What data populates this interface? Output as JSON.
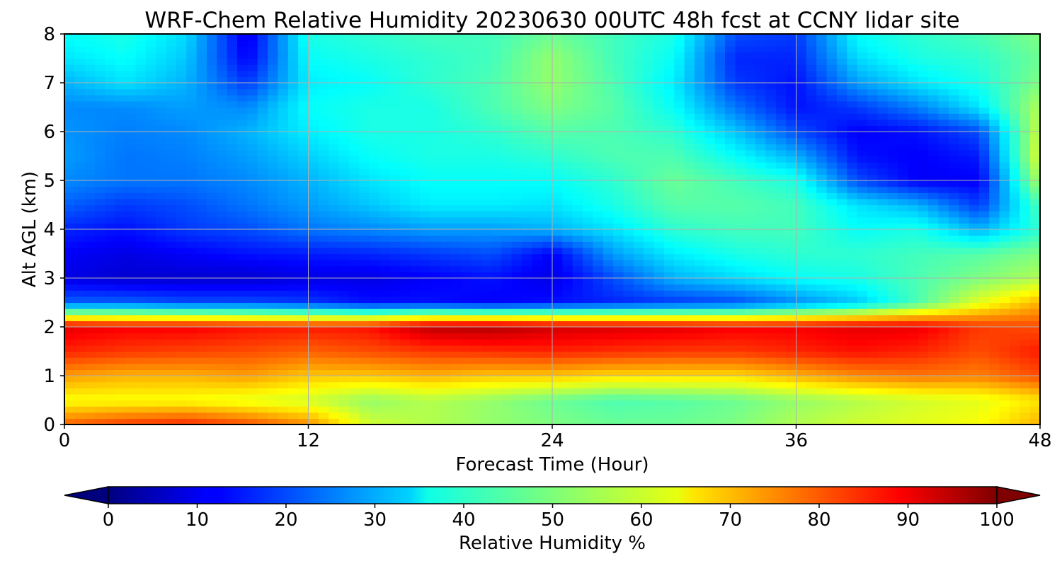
{
  "chart_data": {
    "type": "heatmap",
    "title": "WRF-Chem Relative Humidity 20230630 00UTC 48h fcst at CCNY lidar site",
    "xlabel": "Forecast Time (Hour)",
    "ylabel": "Alt AGL (km)",
    "xlim": [
      0,
      48
    ],
    "ylim": [
      0,
      8
    ],
    "x_ticks": [
      0,
      12,
      24,
      36,
      48
    ],
    "y_ticks": [
      0,
      1,
      2,
      3,
      4,
      5,
      6,
      7,
      8
    ],
    "grid": true,
    "colormap": "jet",
    "x": [
      0,
      3,
      6,
      9,
      12,
      15,
      18,
      21,
      24,
      27,
      30,
      33,
      36,
      39,
      42,
      45,
      48
    ],
    "y": [
      0,
      0.5,
      1,
      1.5,
      2,
      2.5,
      3,
      3.5,
      4,
      4.5,
      5,
      5.5,
      6,
      6.5,
      7,
      7.5,
      8
    ],
    "z": [
      [
        78,
        82,
        84,
        80,
        74,
        58,
        55,
        52,
        50,
        48,
        48,
        50,
        55,
        58,
        60,
        62,
        70
      ],
      [
        62,
        62,
        62,
        60,
        58,
        52,
        55,
        52,
        48,
        45,
        46,
        48,
        52,
        55,
        58,
        60,
        65
      ],
      [
        72,
        70,
        70,
        72,
        68,
        68,
        70,
        68,
        68,
        66,
        66,
        66,
        70,
        74,
        76,
        75,
        80
      ],
      [
        84,
        82,
        81,
        80,
        78,
        80,
        82,
        83,
        84,
        83,
        82,
        82,
        84,
        86,
        84,
        80,
        85
      ],
      [
        90,
        88,
        88,
        86,
        85,
        86,
        94,
        95,
        92,
        91,
        90,
        88,
        88,
        90,
        89,
        82,
        80
      ],
      [
        22,
        22,
        20,
        20,
        18,
        14,
        14,
        12,
        14,
        16,
        18,
        20,
        26,
        32,
        45,
        60,
        70
      ],
      [
        10,
        8,
        8,
        8,
        10,
        10,
        12,
        14,
        10,
        20,
        30,
        34,
        38,
        40,
        45,
        50,
        55
      ],
      [
        12,
        10,
        12,
        14,
        15,
        16,
        18,
        20,
        12,
        28,
        36,
        40,
        42,
        42,
        44,
        46,
        50
      ],
      [
        16,
        14,
        18,
        20,
        24,
        26,
        28,
        28,
        30,
        35,
        42,
        44,
        44,
        38,
        40,
        30,
        42
      ],
      [
        22,
        18,
        20,
        24,
        28,
        32,
        36,
        36,
        35,
        40,
        46,
        46,
        44,
        35,
        30,
        18,
        45
      ],
      [
        26,
        24,
        24,
        26,
        30,
        35,
        38,
        38,
        38,
        42,
        48,
        44,
        40,
        20,
        12,
        12,
        55
      ],
      [
        28,
        24,
        25,
        28,
        33,
        38,
        40,
        40,
        42,
        45,
        45,
        38,
        30,
        14,
        12,
        15,
        60
      ],
      [
        27,
        25,
        26,
        30,
        36,
        40,
        40,
        42,
        46,
        45,
        42,
        32,
        20,
        12,
        14,
        20,
        58
      ],
      [
        26,
        26,
        28,
        26,
        38,
        40,
        40,
        45,
        50,
        46,
        38,
        24,
        14,
        18,
        25,
        35,
        55
      ],
      [
        30,
        35,
        30,
        18,
        36,
        38,
        42,
        45,
        52,
        45,
        36,
        18,
        14,
        28,
        35,
        40,
        50
      ],
      [
        35,
        38,
        32,
        12,
        38,
        40,
        42,
        44,
        52,
        44,
        38,
        16,
        16,
        34,
        40,
        42,
        48
      ],
      [
        38,
        40,
        34,
        10,
        40,
        42,
        44,
        44,
        48,
        44,
        40,
        20,
        18,
        38,
        42,
        45,
        50
      ]
    ],
    "colorbar": {
      "label": "Relative Humidity %",
      "range": [
        0,
        100
      ],
      "ticks": [
        0,
        10,
        20,
        30,
        40,
        50,
        60,
        70,
        80,
        90,
        100
      ],
      "orientation": "horizontal",
      "position": "bottom",
      "extend": "both"
    }
  }
}
